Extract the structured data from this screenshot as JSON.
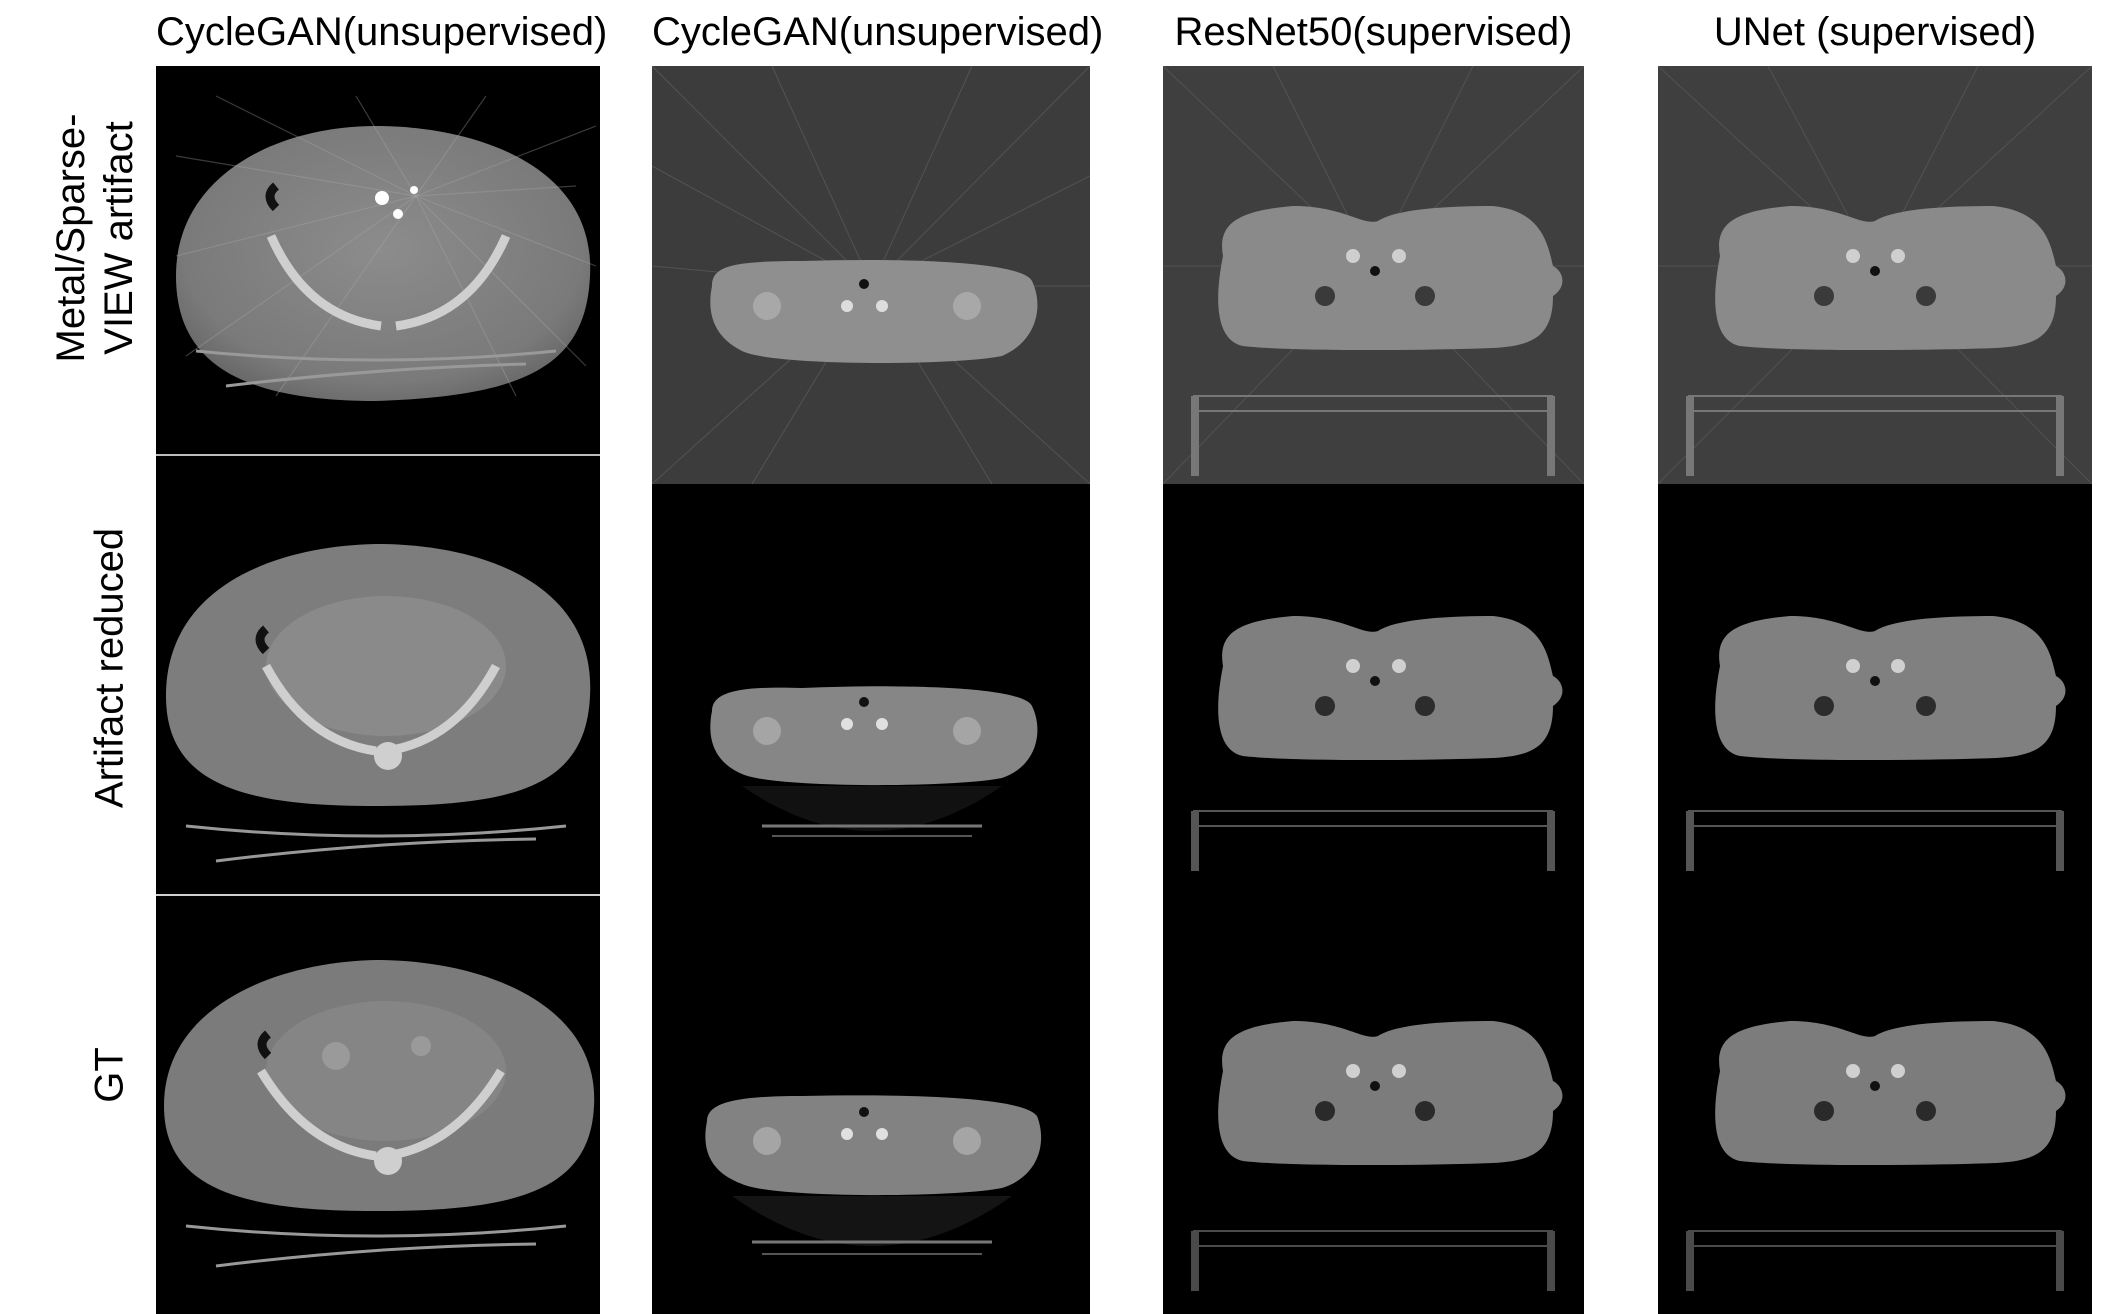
{
  "column_headers": [
    "CycleGAN(unsupervised)",
    "CycleGAN(unsupervised)",
    "ResNet50(supervised)",
    "UNet (supervised)"
  ],
  "row_labels": {
    "artifact_line1": "Metal/Sparse-",
    "artifact_line2": "VIEW artifact",
    "reduced": "Artifact reduced",
    "gt": "GT"
  },
  "panels": [
    {
      "column": 1,
      "row": "artifact",
      "content": "pelvis CT slice with metal streak artifacts"
    },
    {
      "column": 1,
      "row": "reduced",
      "content": "pelvis CT slice, artifacts reduced"
    },
    {
      "column": 1,
      "row": "gt",
      "content": "pelvis CT slice, ground truth"
    },
    {
      "column": 2,
      "row": "artifact",
      "content": "thorax CT slice with sparse-view streaks"
    },
    {
      "column": 2,
      "row": "reduced",
      "content": "thorax CT slice, artifacts reduced"
    },
    {
      "column": 2,
      "row": "gt",
      "content": "thorax CT slice, ground truth"
    },
    {
      "column": 3,
      "row": "artifact",
      "content": "thorax CT slice with sparse-view streaks"
    },
    {
      "column": 3,
      "row": "reduced",
      "content": "thorax CT slice, artifacts reduced"
    },
    {
      "column": 3,
      "row": "gt",
      "content": "thorax CT slice, ground truth"
    },
    {
      "column": 4,
      "row": "artifact",
      "content": "thorax CT slice with sparse-view streaks"
    },
    {
      "column": 4,
      "row": "reduced",
      "content": "thorax CT slice, artifacts reduced"
    },
    {
      "column": 4,
      "row": "gt",
      "content": "thorax CT slice, ground truth"
    }
  ]
}
